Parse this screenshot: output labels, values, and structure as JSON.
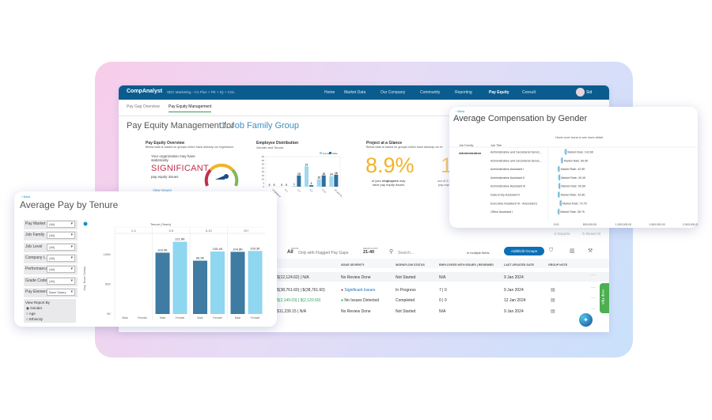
{
  "app": {
    "logo": "CompAnalyst",
    "context": "SDC Marketing - CA Plus + PE + IQ + COL",
    "nav": [
      "Home",
      "Market Data",
      "Our Company",
      "Community",
      "Reporting",
      "Pay Equity",
      "Consult"
    ],
    "user": "Sid"
  },
  "tabs": [
    "Pay Gap Overview",
    "Pay Equity Management"
  ],
  "page_title": "Pay Equity Management for",
  "group_select": "1. Job Family Group",
  "overview": {
    "title": "Pay Equity Overview",
    "desc": "Below data is based on groups which have already run regression.",
    "line1": "Your organization may have statistically",
    "big": "SIGNIFICANT",
    "line2": "pay equity issues",
    "link": "View Issues"
  },
  "distribution": {
    "title": "Employee Distribution",
    "filters": "Gender  and  Tenure",
    "chart_data": {
      "type": "bar",
      "categories": [
        "Undefined",
        "0-1",
        "1-3",
        "3-5",
        "5-10",
        "10 and Over"
      ],
      "series": [
        {
          "name": "Female",
          "values": [
            0,
            0,
            1,
            27,
            10,
            14
          ]
        },
        {
          "name": "Male",
          "values": [
            0,
            0,
            15,
            2,
            15,
            16
          ]
        }
      ],
      "ylim": [
        0,
        40
      ],
      "yticks": [
        0,
        5,
        10,
        15,
        20,
        25,
        30,
        35,
        40
      ],
      "legend": "top-right"
    }
  },
  "glance": {
    "title": "Project at a Glance",
    "desc": "Below data is based on groups which have already run re",
    "value": "8.9%",
    "text1": "of your",
    "bold": "employees",
    "text2": "may have pay equity issues",
    "second_value": "1",
    "second_text": "out of 2 groups",
    "second_text2": "pay equity"
  },
  "tenure": {
    "back": "‹ Back",
    "title": "Average Pay by Tenure",
    "filters": [
      {
        "label": "Pay Market",
        "value": "(All)"
      },
      {
        "label": "Job Family",
        "value": "(All)"
      },
      {
        "label": "Job Level",
        "value": "(All)"
      },
      {
        "label": "Company I...",
        "value": "(All)"
      },
      {
        "label": "Performance",
        "value": "(All)"
      },
      {
        "label": "Grade Code",
        "value": "(All)"
      },
      {
        "label": "Pay Element",
        "value": "Base Salary"
      }
    ],
    "view_by": {
      "label": "View Report By",
      "options": [
        "Gender",
        "Age",
        "Ethnicity"
      ],
      "selected": "Gender"
    },
    "chart_data": {
      "type": "bar",
      "title": "Tenure (Years)",
      "ylabel": "Avg. Base Salary",
      "categories": [
        "1-3",
        "3-5",
        "5-10",
        "10+"
      ],
      "subcategories": [
        "Male",
        "Female"
      ],
      "series": [
        {
          "name": "Male",
          "values": [
            null,
            103.4,
            89.9,
            104.8
          ],
          "labels": [
            "",
            "103.4K",
            "89.9K",
            "104.8K"
          ]
        },
        {
          "name": "Female",
          "values": [
            null,
            121.8,
            105.4,
            106.3
          ],
          "labels": [
            "",
            "121.8K",
            "105.4K",
            "106.3K"
          ]
        }
      ],
      "yticks": [
        "0K",
        "50K",
        "100K"
      ],
      "ylim": [
        0,
        140
      ],
      "colors": {
        "Male": "#3f7ba3",
        "Female": "#8fd6f0"
      }
    }
  },
  "gender": {
    "back": "‹ Back",
    "title": "Average Compensation by Gender",
    "hint": "Hover over icons to see more detail.",
    "col_family": "Job Family",
    "col_title": "Job Title",
    "family": "Administration",
    "chart_data": {
      "type": "scatter",
      "x_ticks": [
        "0.00",
        "500,000.00",
        "1,000,000.00",
        "1,500,000.00",
        "2,000,000.00"
      ],
      "xlim": [
        0,
        2000000
      ],
      "rows": [
        {
          "title": "Administrative and Secretarial Servic...",
          "label": "Market Rate: 143.6K",
          "value": 143600
        },
        {
          "title": "Administrative and Secretarial Servic...",
          "label": "Market Rate: 89.5K",
          "value": 89500
        },
        {
          "title": "Administrative Assistant I",
          "label": "Market Rate: 42.5K",
          "value": 42500
        },
        {
          "title": "Administrative Assistant II",
          "label": "Market Rate: 49.4K",
          "value": 49400
        },
        {
          "title": "Administrative Assistant III",
          "label": "Market Rate: 50.8K",
          "value": 50800
        },
        {
          "title": "Data Entry Assistant II",
          "label": "Market Rate: 42.8K",
          "value": 42800
        },
        {
          "title": "Executive Assistant III - Associate's",
          "label": "Market Rate: 70.7K",
          "value": 70700
        },
        {
          "title": "Office Assistant I",
          "label": "Market Rate: 38.7K",
          "value": 38700
        }
      ]
    },
    "exports": "Exports",
    "reset": "Reset All"
  },
  "toolbar": {
    "show_label": "SHOW",
    "all": "All",
    "flagged": "Only with Flagged Pay Gaps",
    "headcount_label": "HEADCOUNT",
    "headcount": "21-40",
    "search_placeholder": "Search...",
    "fields": "in multiple fields",
    "add_groups": "Add/Edit Groups"
  },
  "table": {
    "headers": [
      "PAY GAP (CURRENT | MODIFIED)",
      "ISSUE SEVERITY",
      "WORKFLOW STATUS",
      "EMPLOYEES WITH ISSUES | REVIEWED",
      "LAST UPDATED DATE",
      "GROUP NOTE"
    ],
    "rows": [
      [
        "$(12,124.62) | N/A",
        "No Review Done",
        "Not Started",
        "N/A",
        "9 Jan 2024"
      ],
      [
        "$(38,761.60) | $(38,761.60)",
        "Significant Issues",
        "In Progress",
        "7 | 0",
        "9 Jan 2024"
      ],
      [
        "$(2,149.03) | $(2,120.50)",
        "No Issues Detected",
        "Completed",
        "0 | 0",
        "12 Jan 2024"
      ],
      [
        "$11,239.15 | N/A",
        "No Review Done",
        "Not Started",
        "N/A",
        "9 Jan 2024"
      ]
    ]
  },
  "help_tips": "Help Tips",
  "colors": {
    "header": "#0b5c8e",
    "accent": "#1a8fc9",
    "significant": "#c0304a",
    "gold": "#f0b429",
    "success": "#2e9e5b",
    "help": "#4caf50"
  }
}
